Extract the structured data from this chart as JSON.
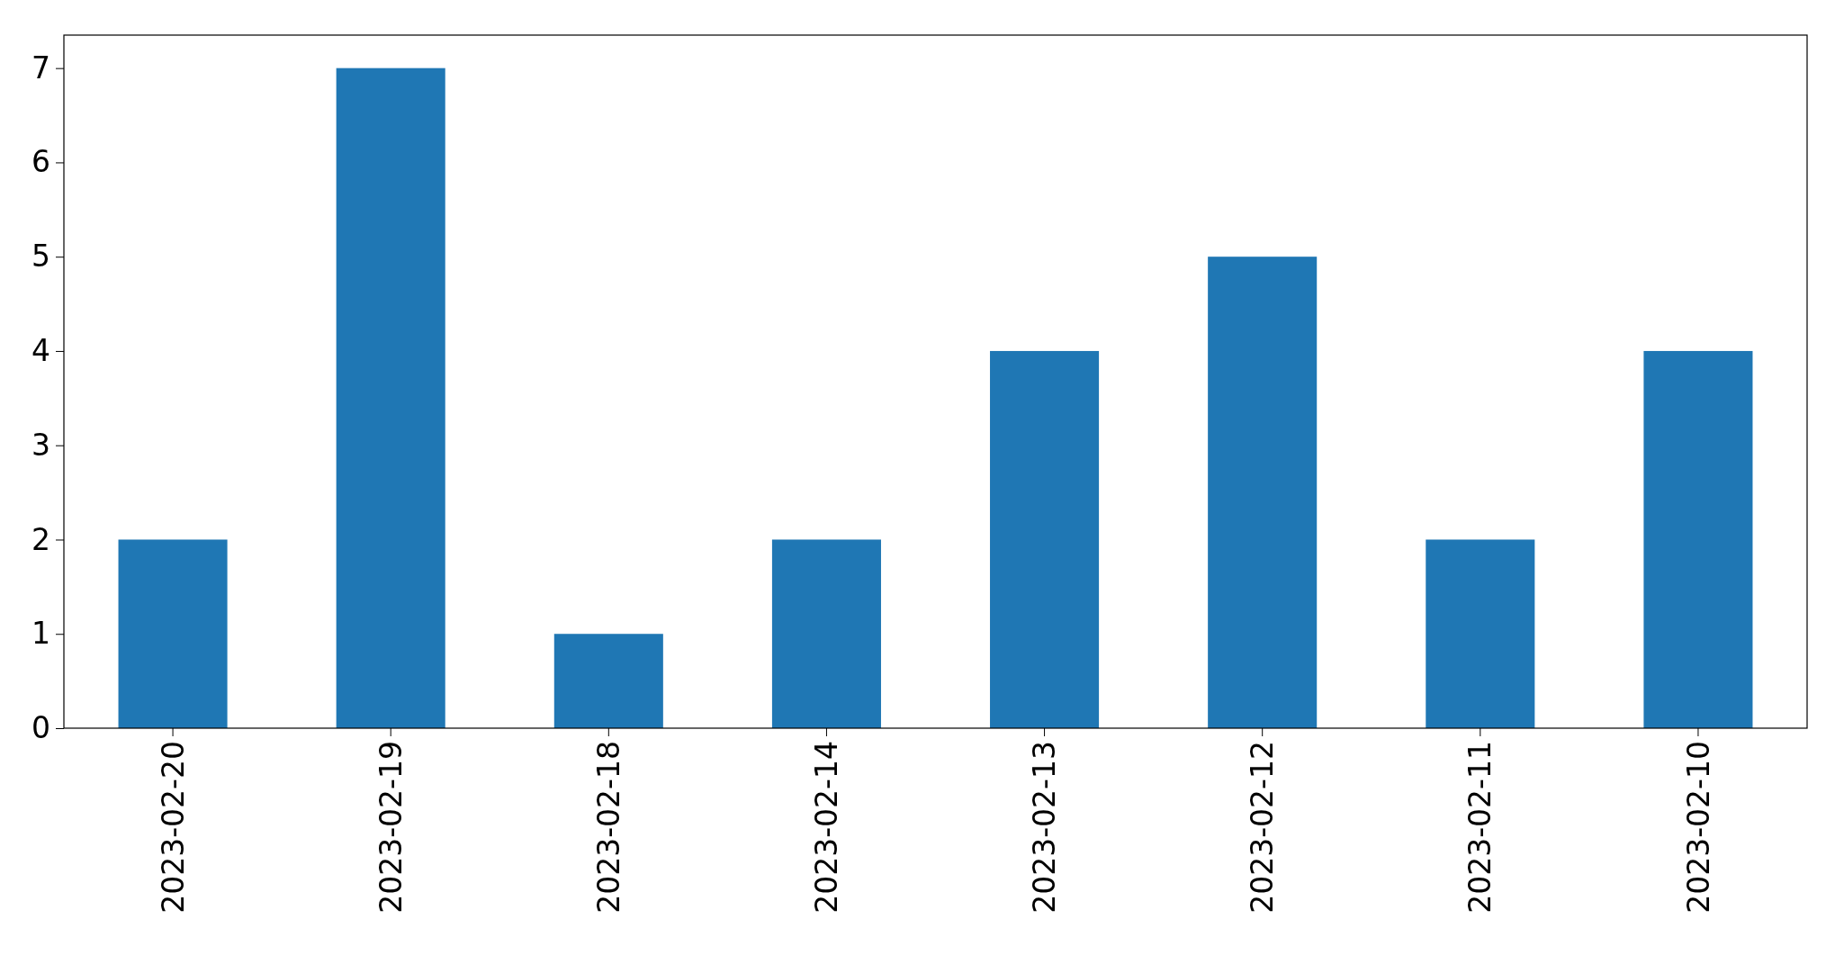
{
  "chart_data": {
    "type": "bar",
    "categories": [
      "2023-02-20",
      "2023-02-19",
      "2023-02-18",
      "2023-02-14",
      "2023-02-13",
      "2023-02-12",
      "2023-02-11",
      "2023-02-10"
    ],
    "values": [
      2,
      7,
      1,
      2,
      4,
      5,
      2,
      4
    ],
    "color": "#1f77b4",
    "ylim": [
      0,
      7.35
    ],
    "yticks": [
      0,
      1,
      2,
      3,
      4,
      5,
      6,
      7
    ],
    "grid": false
  }
}
